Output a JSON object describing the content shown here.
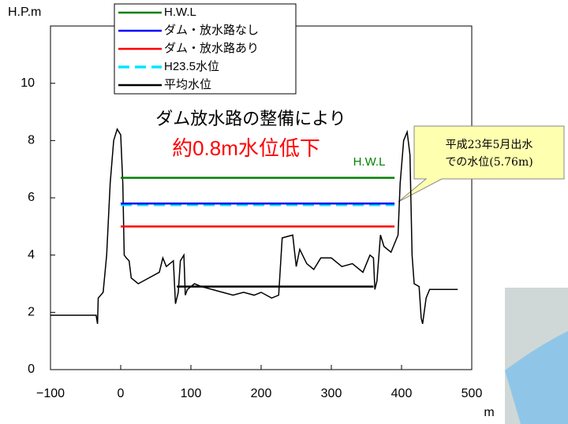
{
  "chart_data": {
    "type": "line",
    "y_label": "H.P.m",
    "x_label": "m",
    "xlim": [
      -100,
      500
    ],
    "ylim": [
      0,
      12
    ],
    "xticks": [
      {
        "value": -100,
        "label": "−100"
      },
      0,
      100,
      200,
      300,
      400,
      500
    ],
    "yticks": [
      0,
      2,
      4,
      6,
      8,
      10
    ],
    "grid": false,
    "legend": "top",
    "series": [
      {
        "name": "H.W.L",
        "color": "#008000",
        "x": [
          0,
          390
        ],
        "values": [
          6.7,
          6.7
        ]
      },
      {
        "name": "ダム・放水路なし",
        "color": "#0000ff",
        "x": [
          0,
          390
        ],
        "values": [
          5.8,
          5.8
        ]
      },
      {
        "name": "ダム・放水路あり",
        "color": "#ff0000",
        "x": [
          0,
          390
        ],
        "values": [
          5.0,
          5.0
        ]
      },
      {
        "name": "H23.5水位",
        "color": "#00e5ff",
        "dashed": true,
        "x": [
          0,
          390
        ],
        "values": [
          5.76,
          5.76
        ]
      },
      {
        "name": "平均水位",
        "color": "#000000",
        "x": [
          80,
          360
        ],
        "values": [
          2.9,
          2.9
        ]
      },
      {
        "color": "#000000",
        "legend": false,
        "x": [
          -100,
          -35,
          -33,
          -32,
          -25,
          -20,
          -15,
          -10,
          -5,
          0,
          3,
          5,
          8,
          12,
          15,
          25,
          40,
          55,
          60,
          65,
          75,
          78,
          82,
          85,
          90,
          92,
          95,
          105,
          115,
          130,
          145,
          160,
          175,
          190,
          200,
          215,
          225,
          230,
          245,
          250,
          255,
          265,
          275,
          285,
          300,
          315,
          330,
          345,
          355,
          360,
          362,
          365,
          370,
          375,
          385,
          395,
          398,
          403,
          408,
          412,
          415,
          418,
          425,
          428,
          430,
          435,
          440,
          480
        ],
        "values": [
          1.9,
          1.9,
          1.6,
          2.5,
          2.7,
          4,
          6.5,
          8,
          8.4,
          8.2,
          6.5,
          4,
          3.9,
          3.8,
          3.2,
          3,
          3.2,
          3.4,
          3.9,
          3.6,
          3.8,
          2.3,
          2.7,
          3.8,
          4,
          2.6,
          2.8,
          3.0,
          2.9,
          2.8,
          2.7,
          2.6,
          2.7,
          2.6,
          2.7,
          2.5,
          2.6,
          4.6,
          4.7,
          3.6,
          4.2,
          3.7,
          3.5,
          3.9,
          3.9,
          3.6,
          3.7,
          3.4,
          4,
          3.9,
          2.8,
          3.1,
          4.7,
          4.3,
          4.1,
          4.7,
          6.5,
          8,
          8.3,
          7.5,
          4,
          3,
          2.9,
          1.8,
          1.6,
          2.5,
          2.8,
          2.8
        ]
      }
    ],
    "annotations": [
      "ダム放水路の整備により",
      "約0.8m水位低下",
      "H.W.L",
      "平成23年5月出水",
      "での水位(5.76m)"
    ]
  }
}
